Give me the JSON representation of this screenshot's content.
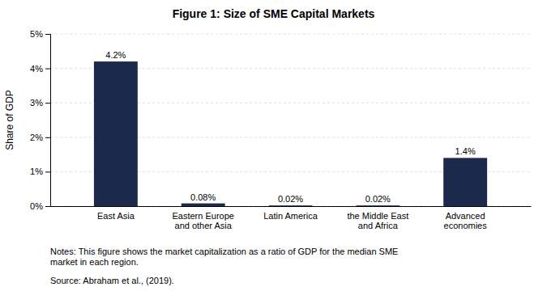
{
  "chart_data": {
    "type": "bar",
    "title": "Figure 1: Size of SME Capital Markets",
    "categories": [
      "East Asia",
      "Eastern Europe\nand other Asia",
      "Latin America",
      "the Middle East\nand Africa",
      "Advanced\neconomies"
    ],
    "values": [
      4.2,
      0.08,
      0.02,
      0.02,
      1.4
    ],
    "value_labels": [
      "4.2%",
      "0.08%",
      "0.02%",
      "0.02%",
      "1.4%"
    ],
    "data_labels": true,
    "color": "#1b2a4a",
    "ylabel": "Share of GDP",
    "ylim": [
      0,
      5
    ],
    "yticks": [
      {
        "value": 0,
        "label": "0%"
      },
      {
        "value": 1,
        "label": "1%"
      },
      {
        "value": 2,
        "label": "2%"
      },
      {
        "value": 3,
        "label": "3%"
      },
      {
        "value": 4,
        "label": "4%"
      },
      {
        "value": 5,
        "label": "5%"
      }
    ],
    "grid": true,
    "annotations": [
      "Notes: This figure shows the market capitalization as a ratio of GDP for the median SME\nmarket in each region.",
      "Source: Abraham et al., (2019)."
    ]
  }
}
